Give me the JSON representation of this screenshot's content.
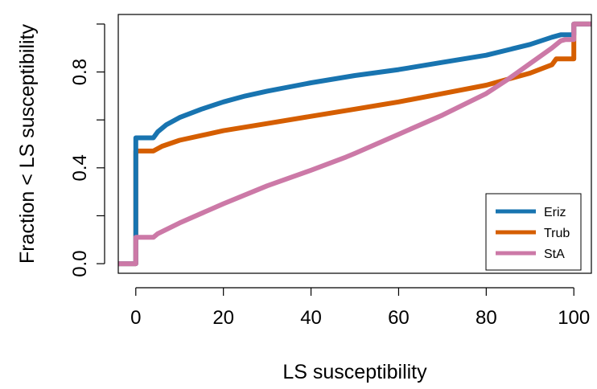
{
  "chart_data": {
    "type": "line",
    "subtype": "step-cdf",
    "title": "",
    "xlabel": "LS susceptibility",
    "ylabel": "Fraction < LS susceptibility",
    "xlim": [
      -4,
      104
    ],
    "ylim": [
      -0.04,
      1.04
    ],
    "x_ticks": [
      0,
      20,
      40,
      60,
      80,
      100
    ],
    "x_tick_labels": [
      "0",
      "20",
      "40",
      "60",
      "80",
      "100"
    ],
    "y_ticks": [
      0.0,
      0.4,
      0.8
    ],
    "y_tick_labels": [
      "0.0",
      "0.4",
      "0.8"
    ],
    "y_minor_ticks": [
      0.2,
      0.6,
      1.0
    ],
    "grid": false,
    "legend_position": "bottom-right",
    "series": [
      {
        "name": "Eriz",
        "color": "#1874b0",
        "points": [
          [
            -4,
            0
          ],
          [
            0,
            0
          ],
          [
            0,
            0.51
          ],
          [
            0,
            0.525
          ],
          [
            4,
            0.525
          ],
          [
            5,
            0.55
          ],
          [
            7,
            0.58
          ],
          [
            10,
            0.61
          ],
          [
            15,
            0.645
          ],
          [
            20,
            0.675
          ],
          [
            25,
            0.7
          ],
          [
            30,
            0.72
          ],
          [
            40,
            0.755
          ],
          [
            50,
            0.785
          ],
          [
            60,
            0.81
          ],
          [
            70,
            0.84
          ],
          [
            80,
            0.87
          ],
          [
            90,
            0.915
          ],
          [
            95,
            0.945
          ],
          [
            97,
            0.955
          ],
          [
            100,
            0.955
          ],
          [
            100,
            1
          ],
          [
            104,
            1
          ]
        ]
      },
      {
        "name": "Trub",
        "color": "#d55e00",
        "points": [
          [
            -4,
            0
          ],
          [
            0,
            0
          ],
          [
            0,
            0.11
          ],
          [
            0,
            0.47
          ],
          [
            4,
            0.47
          ],
          [
            6,
            0.49
          ],
          [
            10,
            0.515
          ],
          [
            15,
            0.535
          ],
          [
            20,
            0.555
          ],
          [
            30,
            0.585
          ],
          [
            40,
            0.615
          ],
          [
            50,
            0.645
          ],
          [
            60,
            0.675
          ],
          [
            70,
            0.71
          ],
          [
            80,
            0.745
          ],
          [
            90,
            0.795
          ],
          [
            95,
            0.83
          ],
          [
            96,
            0.855
          ],
          [
            100,
            0.855
          ],
          [
            100,
            1
          ],
          [
            104,
            1
          ]
        ]
      },
      {
        "name": "StA",
        "color": "#cc79a7",
        "points": [
          [
            -4,
            0
          ],
          [
            0,
            0
          ],
          [
            0,
            0.11
          ],
          [
            4,
            0.11
          ],
          [
            5,
            0.125
          ],
          [
            10,
            0.17
          ],
          [
            20,
            0.25
          ],
          [
            30,
            0.325
          ],
          [
            40,
            0.39
          ],
          [
            48,
            0.445
          ],
          [
            50,
            0.46
          ],
          [
            60,
            0.54
          ],
          [
            70,
            0.62
          ],
          [
            80,
            0.71
          ],
          [
            85,
            0.77
          ],
          [
            90,
            0.835
          ],
          [
            95,
            0.9
          ],
          [
            97,
            0.93
          ],
          [
            98,
            0.935
          ],
          [
            100,
            0.935
          ],
          [
            100,
            1
          ],
          [
            104,
            1
          ]
        ]
      }
    ]
  }
}
